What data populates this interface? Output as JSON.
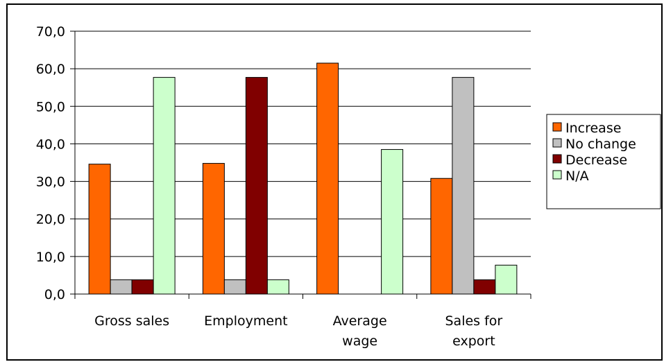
{
  "chart_data": {
    "type": "bar",
    "title": "",
    "xlabel": "",
    "ylabel": "",
    "ylim": [
      0,
      70
    ],
    "ytick_step": 10,
    "ytick_labels": [
      "0,0",
      "10,0",
      "20,0",
      "30,0",
      "40,0",
      "50,0",
      "60,0",
      "70,0"
    ],
    "grid": true,
    "legend_position": "right",
    "categories": [
      [
        "Gross sales"
      ],
      [
        "Employment"
      ],
      [
        "Average",
        "wage"
      ],
      [
        "Sales for",
        "export"
      ]
    ],
    "series": [
      {
        "name": "Increase",
        "color": "#FF6600",
        "values": [
          34.6,
          34.8,
          61.5,
          30.8
        ]
      },
      {
        "name": "No change",
        "color": "#C0C0C0",
        "values": [
          3.8,
          3.8,
          0,
          57.7
        ]
      },
      {
        "name": "Decrease",
        "color": "#800000",
        "values": [
          3.8,
          57.7,
          0,
          3.8
        ]
      },
      {
        "name": "N/A",
        "color": "#CCFFCC",
        "values": [
          57.7,
          3.8,
          38.5,
          7.7
        ]
      }
    ]
  }
}
